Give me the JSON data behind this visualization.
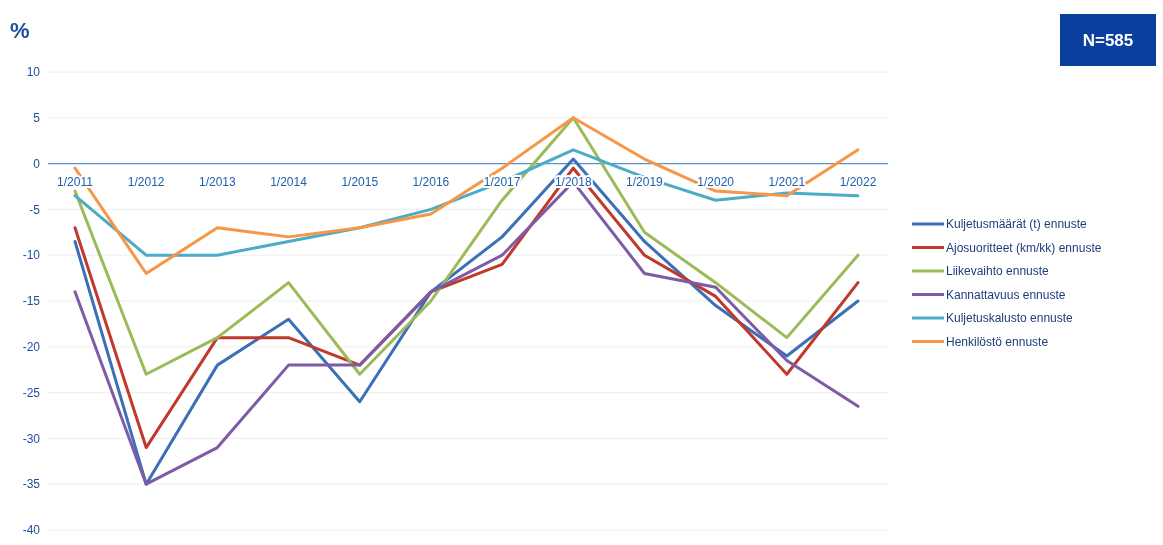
{
  "chart_data": {
    "type": "line",
    "ylabel": "%",
    "annotations": [
      "N=585"
    ],
    "categories": [
      "1/2011",
      "1/2012",
      "1/2013",
      "1/2014",
      "1/2015",
      "1/2016",
      "1/2017",
      "1/2018",
      "1/2019",
      "1/2020",
      "1/2021",
      "1/2022"
    ],
    "ylim": [
      -40,
      10
    ],
    "yticks": [
      -40,
      -35,
      -30,
      -25,
      -20,
      -15,
      -10,
      -5,
      0,
      5,
      10
    ],
    "grid": "y",
    "legend": "right",
    "marker": "none",
    "series": [
      {
        "name": "Kuljetusmäärät (t) ennuste",
        "color": "#3b6fb6",
        "values": [
          -8.5,
          -35,
          -22,
          -17,
          -26,
          -14,
          -8,
          0.5,
          -8.5,
          -15.5,
          -21,
          -15
        ]
      },
      {
        "name": "Ajosuoritteet (km/kk) ennuste",
        "color": "#c0392b",
        "values": [
          -7,
          -31,
          -19,
          -19,
          -22,
          -14,
          -11,
          -0.5,
          -10,
          -14.5,
          -23,
          -13
        ]
      },
      {
        "name": "Liikevaihto ennuste",
        "color": "#9bbb59",
        "values": [
          -3,
          -23,
          -19,
          -13,
          -23,
          -15,
          -4,
          5,
          -7.5,
          -13,
          -19,
          -10
        ]
      },
      {
        "name": "Kannattavuus ennuste",
        "color": "#7d5ba6",
        "values": [
          -14,
          -35,
          -31,
          -22,
          -22,
          -14,
          -10,
          -2,
          -12,
          -13.5,
          -21.5,
          -26.5
        ]
      },
      {
        "name": "Kuljetuskalusto ennuste",
        "color": "#4bacc6",
        "values": [
          -3.5,
          -10,
          -10,
          -8.5,
          -7,
          -5,
          -2,
          1.5,
          -1.5,
          -4,
          -3.2,
          -3.5
        ]
      },
      {
        "name": "Henkilöstö ennuste",
        "color": "#f79646",
        "values": [
          -0.5,
          -12,
          -7,
          -8,
          -7,
          -5.5,
          -0.5,
          5,
          0.5,
          -3,
          -3.5,
          1.5
        ]
      }
    ]
  }
}
